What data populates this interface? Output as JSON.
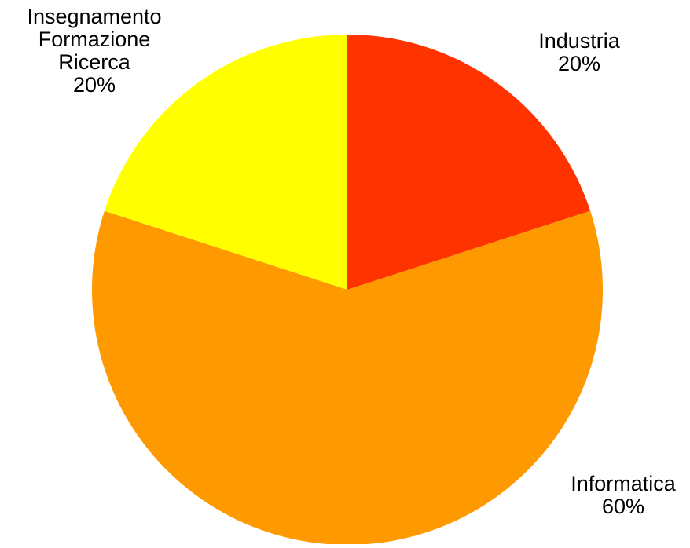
{
  "chart_data": {
    "type": "pie",
    "title": "",
    "start_angle_deg": 0,
    "direction": "clockwise",
    "legend": "none",
    "slices": [
      {
        "name": "Industria",
        "label_lines": [
          "Industria"
        ],
        "value": 20,
        "value_label": "20%",
        "color": "#FF3300"
      },
      {
        "name": "Informatica",
        "label_lines": [
          "Informatica"
        ],
        "value": 60,
        "value_label": "60%",
        "color": "#FF9900"
      },
      {
        "name": "Insegnamento Formazione Ricerca",
        "label_lines": [
          "Insegnamento",
          "Formazione",
          "Ricerca"
        ],
        "value": 20,
        "value_label": "20%",
        "color": "#FFFF00"
      }
    ]
  }
}
